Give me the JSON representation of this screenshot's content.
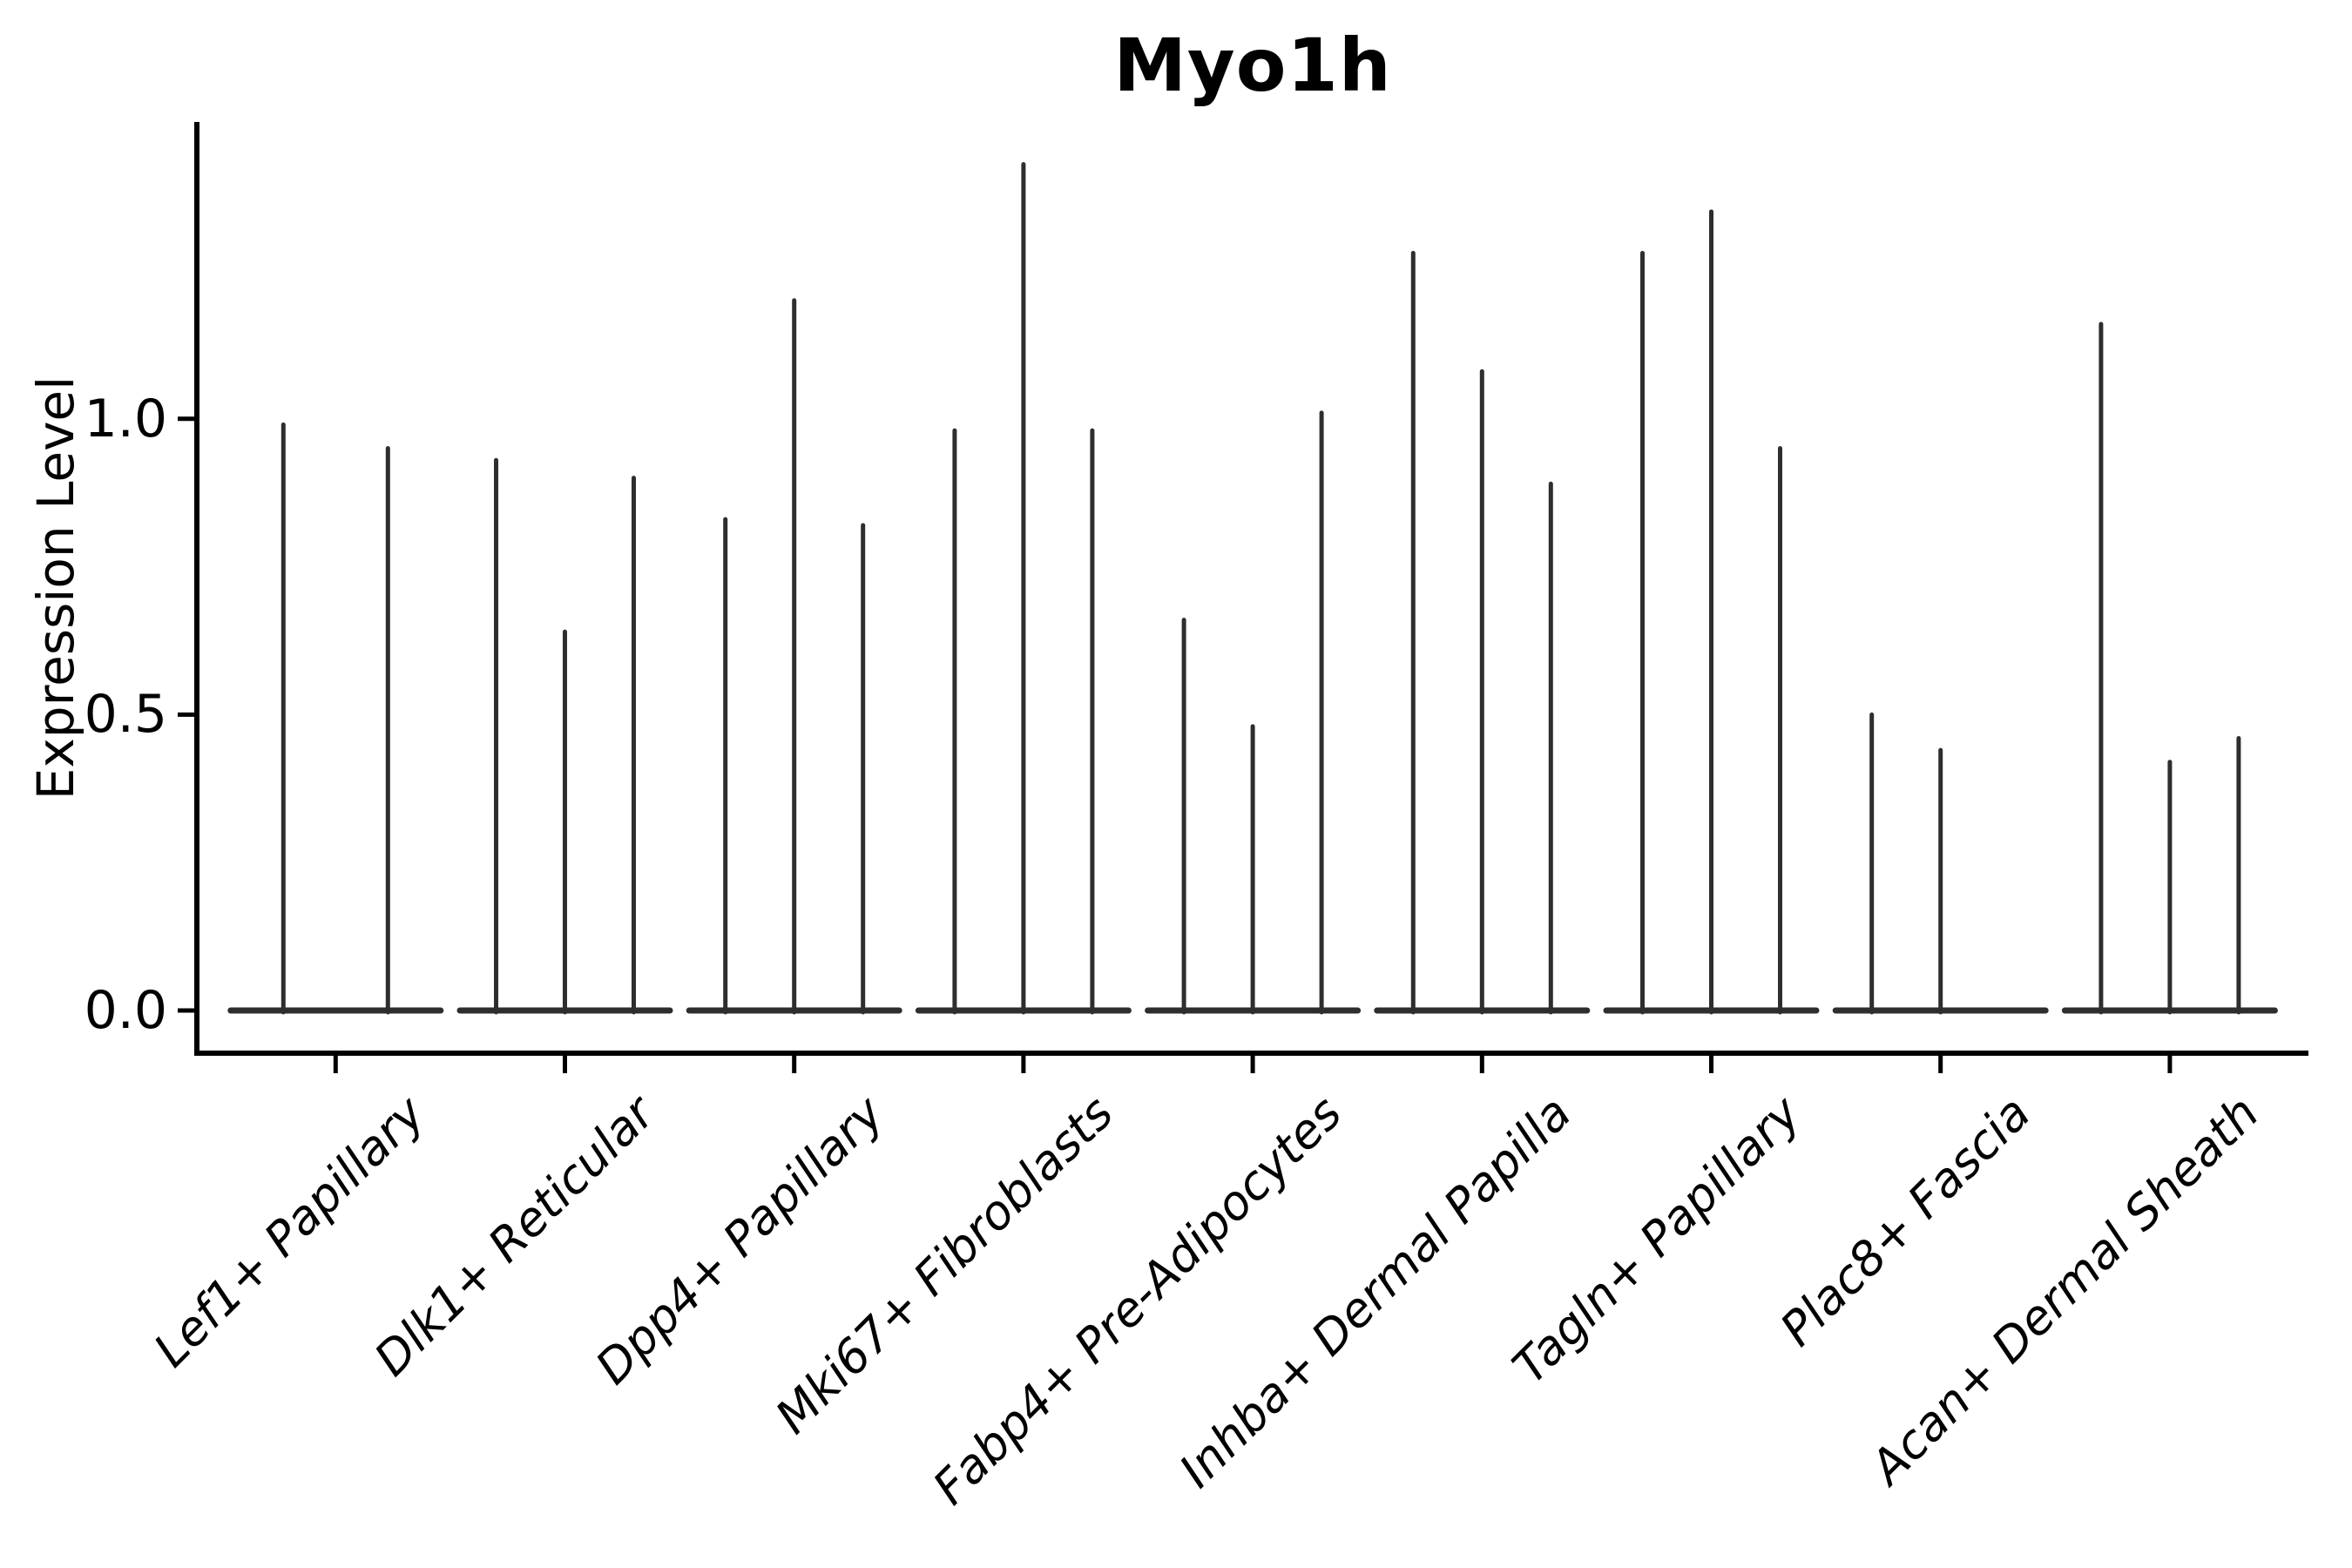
{
  "figure": {
    "background": "#ffffff"
  },
  "chart_data": {
    "type": "violin",
    "title": "Myo1h",
    "xlabel": "",
    "ylabel": "Expression Level",
    "ylim": [
      0,
      1.5
    ],
    "grid": false,
    "legend": null,
    "yticks": [
      {
        "label": "0.0",
        "value": 0.0
      },
      {
        "label": "0.5",
        "value": 0.5
      },
      {
        "label": "1.0",
        "value": 1.0
      }
    ],
    "categories": [
      "Lef1+ Papillary",
      "Dlk1+ Reticular",
      "Dpp4+ Papillary",
      "Mki67+ Fibroblasts",
      "Fabp4+ Pre-Adipocytes",
      "Inhba+ Dermal Papilla",
      "Tagln+ Papillary",
      "Plac8+ Fascia",
      "Acan+ Dermal Sheath"
    ],
    "groups": [
      {
        "label": "Lef1+ Papillary",
        "violin_peaks": [
          0.99,
          0.95
        ]
      },
      {
        "label": "Dlk1+ Reticular",
        "violin_peaks": [
          0.93,
          0.64,
          0.9
        ]
      },
      {
        "label": "Dpp4+ Papillary",
        "violin_peaks": [
          0.83,
          1.2,
          0.82
        ]
      },
      {
        "label": "Mki67+ Fibroblasts",
        "violin_peaks": [
          0.98,
          1.43,
          0.98
        ]
      },
      {
        "label": "Fabp4+ Pre-Adipocytes",
        "violin_peaks": [
          0.66,
          0.48,
          1.01
        ]
      },
      {
        "label": "Inhba+ Dermal Papilla",
        "violin_peaks": [
          1.28,
          1.08,
          0.89
        ]
      },
      {
        "label": "Tagln+ Papillary",
        "violin_peaks": [
          1.28,
          1.35,
          0.95
        ]
      },
      {
        "label": "Plac8+ Fascia",
        "violin_peaks": [
          0.5,
          0.44,
          0.0
        ]
      },
      {
        "label": "Acan+ Dermal Sheath",
        "violin_peaks": [
          1.16,
          0.42,
          0.46
        ]
      }
    ],
    "style": {
      "violin_color": "#2e2e2e",
      "axis_color": "#000000"
    }
  }
}
